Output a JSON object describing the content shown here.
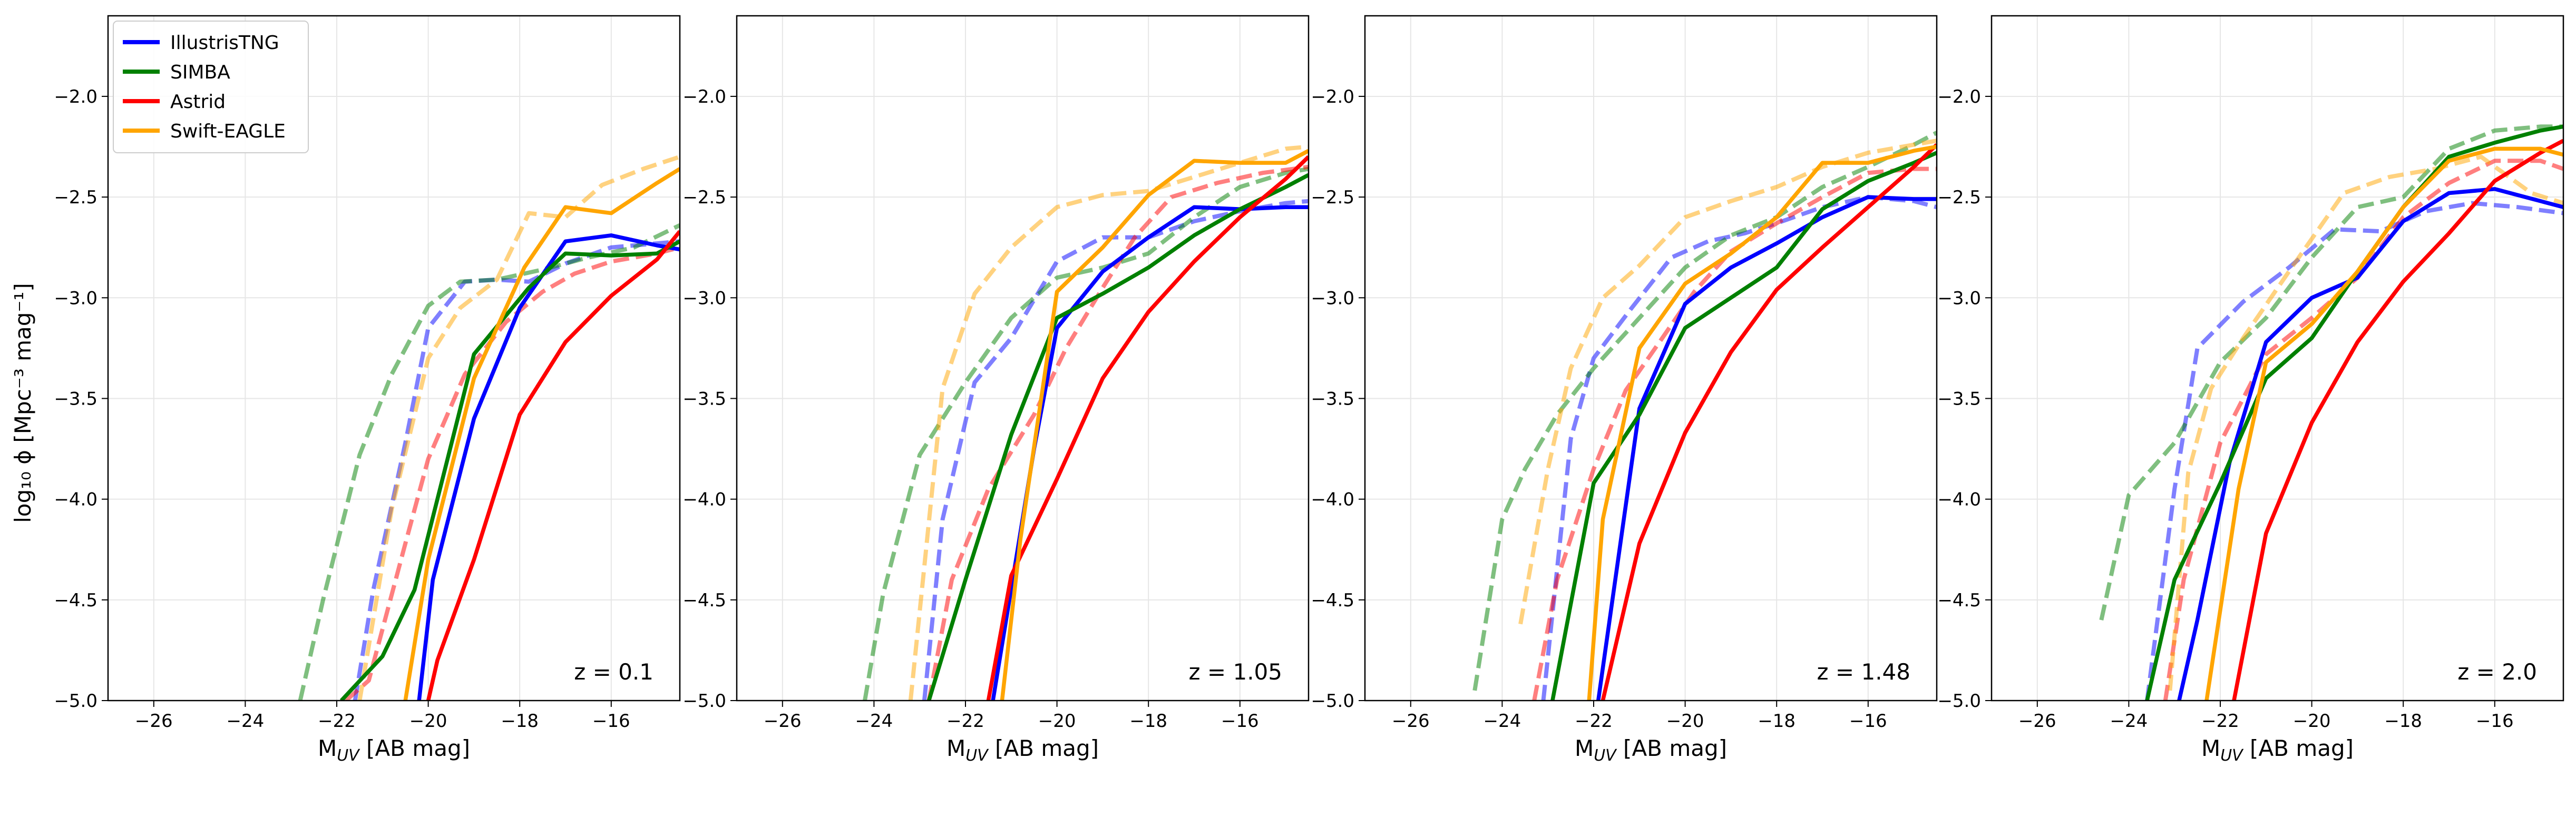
{
  "figure": {
    "ylabel": "log₁₀ ϕ [Mpc⁻³ mag⁻¹]",
    "legend": {
      "placement": "upper-left of first panel",
      "entries": [
        {
          "name": "IllustrisTNG",
          "color": "#0000ff"
        },
        {
          "name": "SIMBA",
          "color": "#008000"
        },
        {
          "name": "Astrid",
          "color": "#ff0000"
        },
        {
          "name": "Swift-EAGLE",
          "color": "#ffa500"
        }
      ]
    }
  },
  "chart_data": [
    {
      "type": "line",
      "annotation": "z = 0.1",
      "xlabel": "M_UV [AB mag]",
      "xlim": [
        -27,
        -14.5
      ],
      "ylim": [
        -5.0,
        -1.6
      ],
      "xticks": [
        "-26",
        "-24",
        "-22",
        "-20",
        "-18",
        "-16"
      ],
      "yticks": [
        "-5.0",
        "-4.5",
        "-4.0",
        "-3.5",
        "-3.0",
        "-2.5",
        "-2.0"
      ],
      "grid": true,
      "series": [
        {
          "name": "IllustrisTNG",
          "style": "solid",
          "x": [
            -20.2,
            -19.9,
            -19.0,
            -18.0,
            -17.0,
            -16.0,
            -15.0,
            -14.5
          ],
          "y": [
            -5.0,
            -4.4,
            -3.6,
            -3.05,
            -2.72,
            -2.69,
            -2.74,
            -2.76
          ]
        },
        {
          "name": "SIMBA",
          "style": "solid",
          "x": [
            -21.9,
            -21.0,
            -20.3,
            -19.0,
            -17.8,
            -17.0,
            -16.0,
            -15.0,
            -14.5
          ],
          "y": [
            -5.0,
            -4.78,
            -4.45,
            -3.28,
            -2.95,
            -2.78,
            -2.79,
            -2.78,
            -2.72
          ]
        },
        {
          "name": "Astrid",
          "style": "solid",
          "x": [
            -20.0,
            -19.8,
            -19.0,
            -18.0,
            -17.0,
            -16.0,
            -15.0,
            -14.5
          ],
          "y": [
            -5.0,
            -4.8,
            -4.3,
            -3.58,
            -3.22,
            -2.99,
            -2.81,
            -2.67
          ]
        },
        {
          "name": "Swift-EAGLE",
          "style": "solid",
          "x": [
            -20.5,
            -20.0,
            -19.0,
            -17.9,
            -17.0,
            -16.0,
            -15.0,
            -14.5
          ],
          "y": [
            -5.0,
            -4.3,
            -3.4,
            -2.85,
            -2.55,
            -2.58,
            -2.43,
            -2.36
          ]
        },
        {
          "name": "IllustrisTNG",
          "style": "dashed",
          "x": [
            -21.6,
            -21.2,
            -20.5,
            -20.0,
            -19.2,
            -18.5,
            -17.8,
            -17.0,
            -16.0,
            -15.0,
            -14.5
          ],
          "y": [
            -5.0,
            -4.45,
            -3.72,
            -3.15,
            -2.92,
            -2.91,
            -2.92,
            -2.83,
            -2.75,
            -2.73,
            -2.72
          ]
        },
        {
          "name": "SIMBA",
          "style": "dashed",
          "x": [
            -22.8,
            -22.3,
            -21.5,
            -20.8,
            -20.0,
            -19.3,
            -18.5,
            -17.5,
            -16.5,
            -15.5,
            -14.5
          ],
          "y": [
            -5.0,
            -4.5,
            -3.78,
            -3.38,
            -3.04,
            -2.92,
            -2.91,
            -2.86,
            -2.8,
            -2.75,
            -2.64
          ]
        },
        {
          "name": "Astrid",
          "style": "dashed",
          "x": [
            -21.8,
            -21.3,
            -20.5,
            -20.0,
            -19.2,
            -18.3,
            -17.5,
            -16.8,
            -16.0,
            -15.0,
            -14.5
          ],
          "y": [
            -5.0,
            -4.9,
            -4.22,
            -3.8,
            -3.38,
            -3.12,
            -2.97,
            -2.88,
            -2.82,
            -2.78,
            -2.75
          ]
        },
        {
          "name": "Swift-EAGLE",
          "style": "dashed",
          "x": [
            -21.5,
            -20.8,
            -20.0,
            -19.3,
            -18.5,
            -17.8,
            -17.0,
            -16.2,
            -15.3,
            -14.5
          ],
          "y": [
            -5.0,
            -4.05,
            -3.3,
            -3.05,
            -2.91,
            -2.58,
            -2.6,
            -2.44,
            -2.36,
            -2.3
          ]
        }
      ]
    },
    {
      "type": "line",
      "annotation": "z = 1.05",
      "xlabel": "M_UV [AB mag]",
      "xlim": [
        -27,
        -14.5
      ],
      "ylim": [
        -5.0,
        -1.6
      ],
      "xticks": [
        "-26",
        "-24",
        "-22",
        "-20",
        "-18",
        "-16"
      ],
      "yticks": [
        "-5.0",
        "-4.5",
        "-4.0",
        "-3.5",
        "-3.0",
        "-2.5",
        "-2.0"
      ],
      "grid": true,
      "series": [
        {
          "name": "IllustrisTNG",
          "style": "solid",
          "x": [
            -21.4,
            -20.5,
            -20.0,
            -19.0,
            -18.0,
            -17.0,
            -16.0,
            -15.0,
            -14.5
          ],
          "y": [
            -5.0,
            -3.75,
            -3.15,
            -2.87,
            -2.7,
            -2.55,
            -2.56,
            -2.55,
            -2.55
          ]
        },
        {
          "name": "SIMBA",
          "style": "solid",
          "x": [
            -22.8,
            -22.0,
            -21.0,
            -20.0,
            -19.0,
            -18.0,
            -17.0,
            -16.0,
            -15.0,
            -14.5
          ],
          "y": [
            -5.0,
            -4.4,
            -3.68,
            -3.1,
            -2.98,
            -2.85,
            -2.69,
            -2.56,
            -2.45,
            -2.39
          ]
        },
        {
          "name": "Astrid",
          "style": "solid",
          "x": [
            -21.5,
            -21.0,
            -20.0,
            -19.0,
            -18.0,
            -17.0,
            -16.0,
            -15.0,
            -14.5
          ],
          "y": [
            -5.0,
            -4.38,
            -3.9,
            -3.4,
            -3.07,
            -2.82,
            -2.6,
            -2.41,
            -2.3
          ]
        },
        {
          "name": "Swift-EAGLE",
          "style": "solid",
          "x": [
            -21.2,
            -20.8,
            -20.0,
            -19.0,
            -18.0,
            -17.0,
            -16.0,
            -15.0,
            -14.5
          ],
          "y": [
            -5.0,
            -4.2,
            -2.97,
            -2.75,
            -2.49,
            -2.32,
            -2.33,
            -2.33,
            -2.27
          ]
        },
        {
          "name": "IllustrisTNG",
          "style": "dashed",
          "x": [
            -22.9,
            -22.5,
            -21.8,
            -21.0,
            -20.0,
            -19.0,
            -18.0,
            -17.0,
            -16.0,
            -15.0,
            -14.5
          ],
          "y": [
            -5.0,
            -4.1,
            -3.42,
            -3.2,
            -2.82,
            -2.7,
            -2.7,
            -2.62,
            -2.57,
            -2.53,
            -2.52
          ]
        },
        {
          "name": "SIMBA",
          "style": "dashed",
          "x": [
            -24.2,
            -23.8,
            -23.0,
            -22.0,
            -21.0,
            -20.0,
            -19.0,
            -18.0,
            -17.0,
            -16.0,
            -15.0,
            -14.5
          ],
          "y": [
            -5.0,
            -4.47,
            -3.78,
            -3.42,
            -3.1,
            -2.9,
            -2.85,
            -2.78,
            -2.6,
            -2.45,
            -2.38,
            -2.36
          ]
        },
        {
          "name": "Astrid",
          "style": "dashed",
          "x": [
            -22.8,
            -22.3,
            -21.5,
            -20.5,
            -19.8,
            -19.0,
            -18.3,
            -17.5,
            -16.5,
            -15.5,
            -14.5
          ],
          "y": [
            -5.0,
            -4.4,
            -3.95,
            -3.58,
            -3.25,
            -2.95,
            -2.7,
            -2.5,
            -2.43,
            -2.38,
            -2.35
          ]
        },
        {
          "name": "Swift-EAGLE",
          "style": "dashed",
          "x": [
            -23.2,
            -22.5,
            -21.8,
            -21.0,
            -20.0,
            -19.0,
            -18.0,
            -17.0,
            -16.0,
            -15.0,
            -14.5
          ],
          "y": [
            -5.0,
            -3.45,
            -2.98,
            -2.75,
            -2.55,
            -2.49,
            -2.47,
            -2.4,
            -2.33,
            -2.26,
            -2.25
          ]
        }
      ]
    },
    {
      "type": "line",
      "annotation": "z = 1.48",
      "xlabel": "M_UV [AB mag]",
      "xlim": [
        -27,
        -14.5
      ],
      "ylim": [
        -5.0,
        -1.6
      ],
      "xticks": [
        "-26",
        "-24",
        "-22",
        "-20",
        "-18",
        "-16"
      ],
      "yticks": [
        "-5.0",
        "-4.5",
        "-4.0",
        "-3.5",
        "-3.0",
        "-2.5",
        "-2.0"
      ],
      "grid": true,
      "series": [
        {
          "name": "IllustrisTNG",
          "style": "solid",
          "x": [
            -21.9,
            -21.0,
            -20.0,
            -19.0,
            -18.0,
            -17.0,
            -16.0,
            -15.0,
            -14.5
          ],
          "y": [
            -5.0,
            -3.55,
            -3.03,
            -2.85,
            -2.73,
            -2.6,
            -2.5,
            -2.51,
            -2.51
          ]
        },
        {
          "name": "SIMBA",
          "style": "solid",
          "x": [
            -22.9,
            -22.0,
            -21.0,
            -20.0,
            -19.0,
            -18.0,
            -17.0,
            -16.0,
            -15.0,
            -14.5
          ],
          "y": [
            -5.0,
            -3.92,
            -3.58,
            -3.15,
            -3.0,
            -2.85,
            -2.56,
            -2.42,
            -2.33,
            -2.28
          ]
        },
        {
          "name": "Astrid",
          "style": "solid",
          "x": [
            -21.8,
            -21.0,
            -20.0,
            -19.0,
            -18.0,
            -17.0,
            -16.0,
            -15.0,
            -14.5
          ],
          "y": [
            -5.0,
            -4.22,
            -3.67,
            -3.27,
            -2.96,
            -2.75,
            -2.55,
            -2.35,
            -2.24
          ]
        },
        {
          "name": "Swift-EAGLE",
          "style": "solid",
          "x": [
            -22.1,
            -21.8,
            -21.0,
            -20.0,
            -19.0,
            -18.0,
            -17.0,
            -16.0,
            -15.0,
            -14.5
          ],
          "y": [
            -5.0,
            -4.1,
            -3.25,
            -2.93,
            -2.78,
            -2.6,
            -2.33,
            -2.33,
            -2.27,
            -2.25
          ]
        },
        {
          "name": "IllustrisTNG",
          "style": "dashed",
          "x": [
            -23.1,
            -22.5,
            -22.0,
            -21.2,
            -20.3,
            -19.5,
            -18.7,
            -18.0,
            -17.0,
            -16.0,
            -15.0,
            -14.5
          ],
          "y": [
            -5.0,
            -3.7,
            -3.3,
            -3.06,
            -2.8,
            -2.72,
            -2.68,
            -2.63,
            -2.55,
            -2.5,
            -2.52,
            -2.55
          ]
        },
        {
          "name": "SIMBA",
          "style": "dashed",
          "x": [
            -24.6,
            -24.0,
            -23.5,
            -22.8,
            -22.0,
            -21.0,
            -20.0,
            -19.0,
            -18.0,
            -17.0,
            -16.0,
            -15.0,
            -14.5
          ],
          "y": [
            -4.95,
            -4.1,
            -3.85,
            -3.58,
            -3.35,
            -3.1,
            -2.85,
            -2.69,
            -2.6,
            -2.45,
            -2.35,
            -2.24,
            -2.18
          ]
        },
        {
          "name": "Astrid",
          "style": "dashed",
          "x": [
            -23.3,
            -22.8,
            -22.0,
            -21.3,
            -20.5,
            -19.8,
            -19.0,
            -18.0,
            -17.0,
            -16.0,
            -15.0,
            -14.5
          ],
          "y": [
            -5.0,
            -4.4,
            -3.85,
            -3.46,
            -3.2,
            -2.97,
            -2.77,
            -2.63,
            -2.5,
            -2.38,
            -2.36,
            -2.36
          ]
        },
        {
          "name": "Swift-EAGLE",
          "style": "dashed",
          "x": [
            -23.6,
            -23.0,
            -22.5,
            -21.8,
            -21.0,
            -20.0,
            -19.0,
            -18.0,
            -17.0,
            -16.0,
            -15.0,
            -14.5
          ],
          "y": [
            -4.62,
            -3.85,
            -3.35,
            -3.0,
            -2.84,
            -2.6,
            -2.52,
            -2.45,
            -2.35,
            -2.28,
            -2.24,
            -2.22
          ]
        }
      ]
    },
    {
      "type": "line",
      "annotation": "z = 2.0",
      "xlabel": "M_UV [AB mag]",
      "xlim": [
        -27,
        -14.5
      ],
      "ylim": [
        -5.0,
        -1.6
      ],
      "xticks": [
        "-26",
        "-24",
        "-22",
        "-20",
        "-18",
        "-16"
      ],
      "yticks": [
        "-5.0",
        "-4.5",
        "-4.0",
        "-3.5",
        "-3.0",
        "-2.5",
        "-2.0"
      ],
      "grid": true,
      "series": [
        {
          "name": "IllustrisTNG",
          "style": "solid",
          "x": [
            -22.9,
            -22.5,
            -21.8,
            -21.0,
            -20.0,
            -19.0,
            -18.0,
            -17.0,
            -16.0,
            -15.0,
            -14.5
          ],
          "y": [
            -5.0,
            -4.6,
            -3.82,
            -3.22,
            -3.0,
            -2.9,
            -2.62,
            -2.48,
            -2.46,
            -2.52,
            -2.55
          ]
        },
        {
          "name": "SIMBA",
          "style": "solid",
          "x": [
            -23.6,
            -23.0,
            -22.0,
            -21.0,
            -20.0,
            -19.0,
            -18.0,
            -17.0,
            -16.0,
            -15.0,
            -14.5
          ],
          "y": [
            -5.0,
            -4.4,
            -3.92,
            -3.4,
            -3.2,
            -2.87,
            -2.55,
            -2.3,
            -2.23,
            -2.17,
            -2.15
          ]
        },
        {
          "name": "Astrid",
          "style": "solid",
          "x": [
            -21.7,
            -21.0,
            -20.0,
            -19.0,
            -18.0,
            -17.0,
            -16.0,
            -15.0,
            -14.5
          ],
          "y": [
            -5.0,
            -4.17,
            -3.62,
            -3.22,
            -2.92,
            -2.68,
            -2.42,
            -2.28,
            -2.22
          ]
        },
        {
          "name": "Swift-EAGLE",
          "style": "solid",
          "x": [
            -22.3,
            -21.6,
            -21.0,
            -20.0,
            -19.0,
            -18.0,
            -17.0,
            -16.0,
            -15.0,
            -14.5
          ],
          "y": [
            -5.0,
            -3.95,
            -3.32,
            -3.13,
            -2.87,
            -2.55,
            -2.32,
            -2.26,
            -2.26,
            -2.29
          ]
        },
        {
          "name": "IllustrisTNG",
          "style": "dashed",
          "x": [
            -23.6,
            -23.0,
            -22.5,
            -21.5,
            -20.5,
            -19.5,
            -18.5,
            -17.5,
            -16.5,
            -15.5,
            -14.5
          ],
          "y": [
            -5.0,
            -3.95,
            -3.25,
            -3.02,
            -2.85,
            -2.66,
            -2.67,
            -2.57,
            -2.53,
            -2.55,
            -2.58
          ]
        },
        {
          "name": "SIMBA",
          "style": "dashed",
          "x": [
            -24.6,
            -24.0,
            -23.0,
            -22.0,
            -21.0,
            -20.0,
            -19.0,
            -18.0,
            -17.0,
            -16.0,
            -15.0,
            -14.5
          ],
          "y": [
            -4.6,
            -3.98,
            -3.72,
            -3.32,
            -3.1,
            -2.8,
            -2.55,
            -2.5,
            -2.26,
            -2.17,
            -2.15,
            -2.15
          ]
        },
        {
          "name": "Astrid",
          "style": "dashed",
          "x": [
            -23.2,
            -22.8,
            -22.0,
            -21.0,
            -20.0,
            -19.0,
            -18.0,
            -17.0,
            -16.0,
            -15.0,
            -14.5
          ],
          "y": [
            -5.0,
            -4.4,
            -3.72,
            -3.28,
            -3.1,
            -2.9,
            -2.6,
            -2.43,
            -2.32,
            -2.32,
            -2.36
          ]
        },
        {
          "name": "Swift-EAGLE",
          "style": "dashed",
          "x": [
            -23.1,
            -22.7,
            -22.2,
            -21.5,
            -20.5,
            -19.3,
            -18.3,
            -17.3,
            -16.3,
            -15.2,
            -14.5
          ],
          "y": [
            -4.95,
            -3.87,
            -3.45,
            -3.2,
            -2.87,
            -2.48,
            -2.4,
            -2.36,
            -2.3,
            -2.48,
            -2.53
          ]
        }
      ]
    }
  ]
}
